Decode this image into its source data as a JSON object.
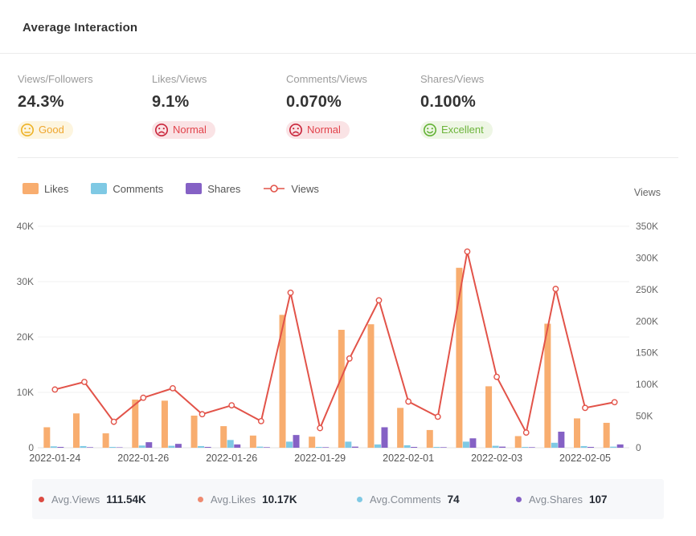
{
  "header": {
    "title": "Average Interaction"
  },
  "metrics": {
    "items": [
      {
        "label": "Views/Followers",
        "value": "24.3%",
        "status": "Good",
        "tone": "good"
      },
      {
        "label": "Likes/Views",
        "value": "9.1%",
        "status": "Normal",
        "tone": "normal"
      },
      {
        "label": "Comments/Views",
        "value": "0.070%",
        "status": "Normal",
        "tone": "normal"
      },
      {
        "label": "Shares/Views",
        "value": "0.100%",
        "status": "Excellent",
        "tone": "excellent"
      }
    ],
    "tones": {
      "good": {
        "text_color": "#EFA62E",
        "bg": "#FDF5DF",
        "icon": "#EDB225",
        "face": "neutral"
      },
      "normal": {
        "text_color": "#E2444C",
        "bg": "#FAE3E5",
        "icon": "#C9243A",
        "face": "sad"
      },
      "excellent": {
        "text_color": "#6CB43B",
        "bg": "#EEF6E5",
        "icon": "#62B234",
        "face": "happy"
      }
    }
  },
  "chart_data": {
    "type": "combo",
    "n_points": 20,
    "x_tick_positions": [
      0,
      3,
      6,
      9,
      12,
      15,
      18
    ],
    "x_tick_labels": [
      "2022-01-24",
      "2022-01-26",
      "2022-01-26",
      "2022-01-29",
      "2022-02-01",
      "2022-02-03",
      "2022-02-05"
    ],
    "series": [
      {
        "name": "Likes",
        "type": "bar",
        "axis": "left",
        "color": "#F8AD6F",
        "values_k": [
          3.7,
          6.2,
          2.6,
          8.7,
          8.5,
          5.8,
          3.9,
          2.2,
          24.0,
          2.0,
          21.3,
          22.3,
          7.2,
          3.2,
          32.5,
          11.1,
          2.1,
          22.4,
          5.3,
          4.5
        ]
      },
      {
        "name": "Comments",
        "type": "bar",
        "axis": "left",
        "color": "#7FC9E4",
        "values_k": [
          0.25,
          0.3,
          0.15,
          0.4,
          0.35,
          0.3,
          1.4,
          0.2,
          1.1,
          0.15,
          1.1,
          0.6,
          0.45,
          0.15,
          1.1,
          0.35,
          0.15,
          0.9,
          0.3,
          0.2
        ]
      },
      {
        "name": "Shares",
        "type": "bar",
        "axis": "left",
        "color": "#8561C5",
        "values_k": [
          0.15,
          0.1,
          0.08,
          1.0,
          0.7,
          0.15,
          0.6,
          0.1,
          2.3,
          0.1,
          0.2,
          3.7,
          0.15,
          0.1,
          1.7,
          0.2,
          0.1,
          2.9,
          0.15,
          0.6
        ]
      },
      {
        "name": "Views",
        "type": "line",
        "axis": "right",
        "color": "#E25349",
        "values_k": [
          92,
          104,
          41,
          79,
          94,
          53,
          67,
          42,
          245,
          31,
          141,
          233,
          73,
          49,
          310,
          112,
          24,
          251,
          63,
          72
        ]
      }
    ],
    "left_axis": {
      "ticks": [
        "0",
        "10K",
        "20K",
        "30K",
        "40K"
      ],
      "max_k": 40
    },
    "right_axis": {
      "title": "Views",
      "ticks": [
        "0",
        "50K",
        "100K",
        "150K",
        "200K",
        "250K",
        "300K",
        "350K"
      ],
      "max_k": 350
    },
    "grid": true,
    "legend_position": "top-left"
  },
  "footer": {
    "items": [
      {
        "label": "Avg.Views",
        "value": "111.54K",
        "color": "#DC4B42"
      },
      {
        "label": "Avg.Likes",
        "value": "10.17K",
        "color": "#EE8A70"
      },
      {
        "label": "Avg.Comments",
        "value": "74",
        "color": "#7FC9E4"
      },
      {
        "label": "Avg.Shares",
        "value": "107",
        "color": "#8561C5"
      }
    ]
  }
}
